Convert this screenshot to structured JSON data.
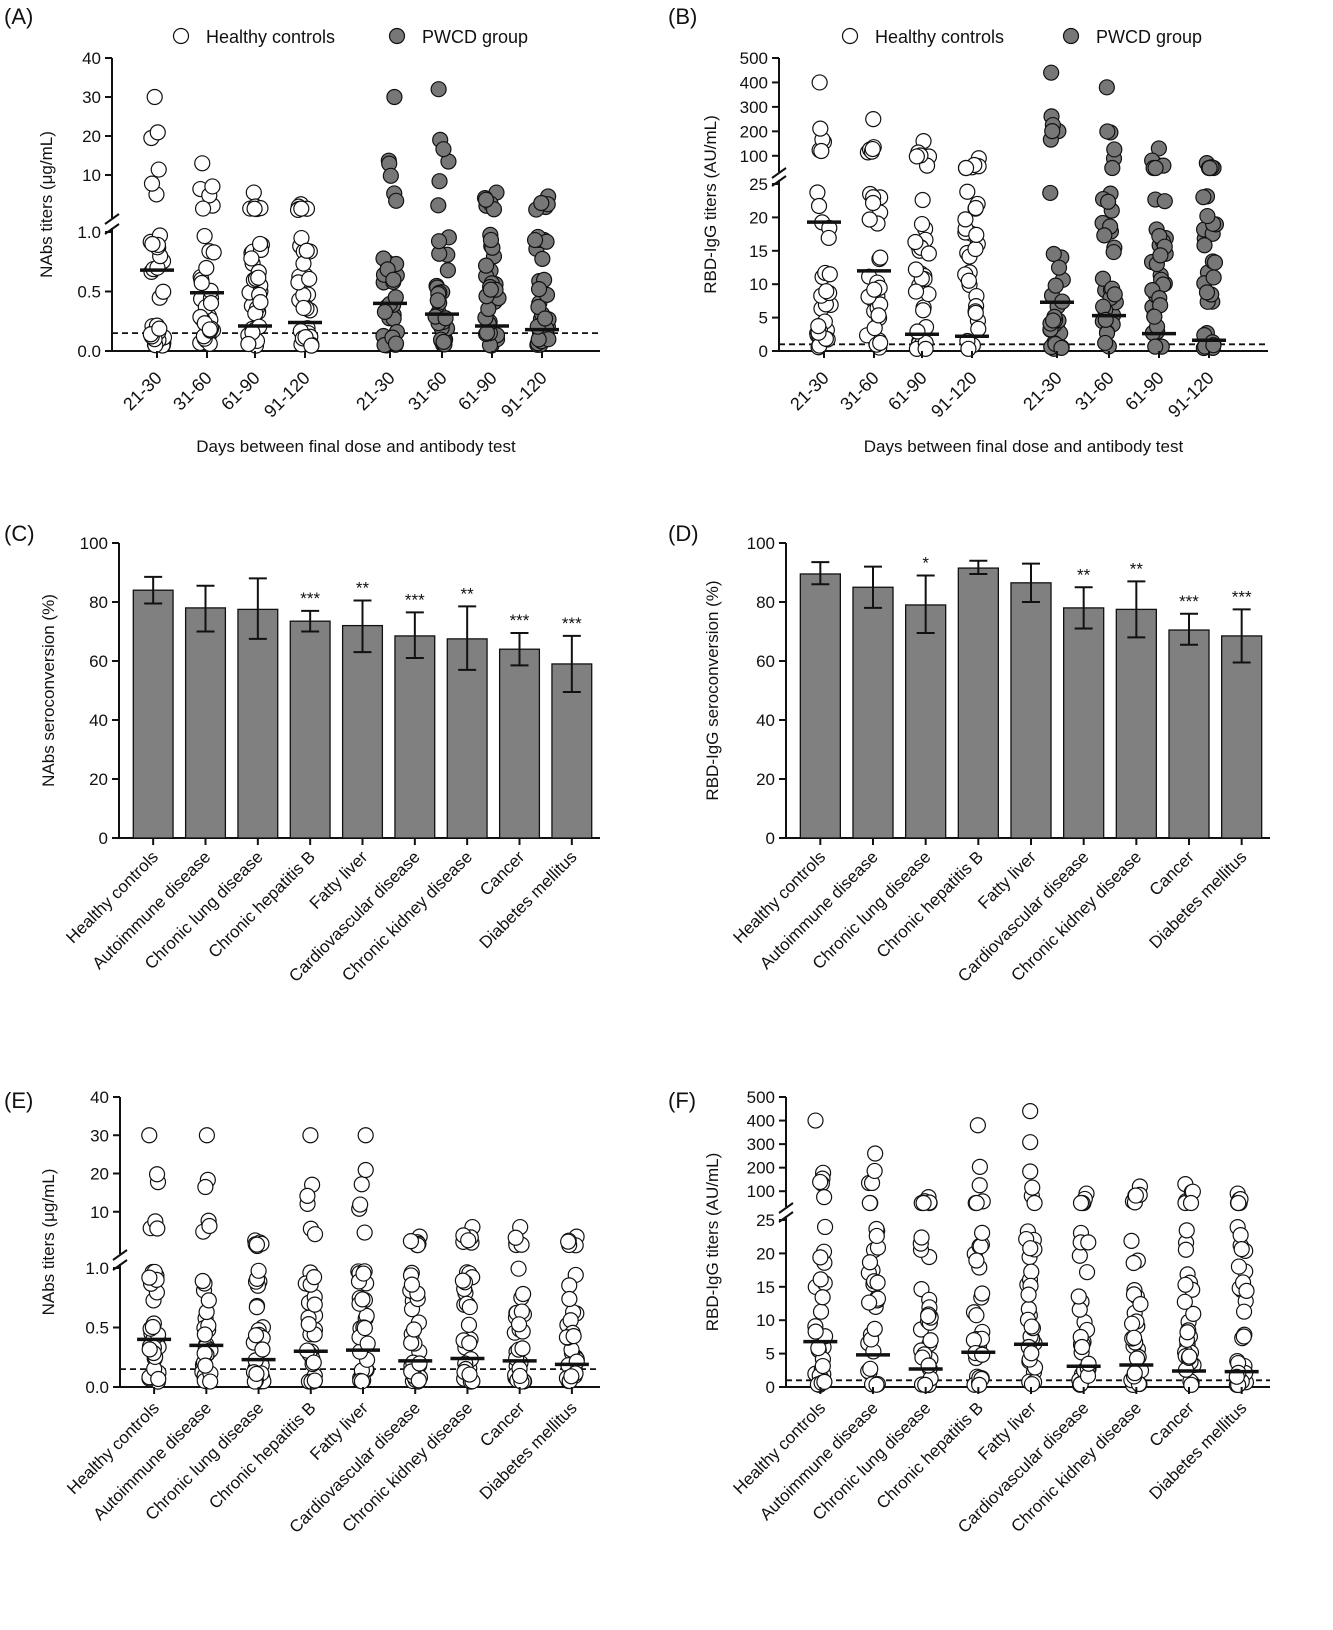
{
  "chart_data": [
    {
      "panel": "(A)",
      "type": "scatter",
      "ylabel": "NAbs titers (μg/mL)",
      "xlabel": "Days between final dose and antibody test",
      "legend": [
        "Healthy controls",
        "PWCD group"
      ],
      "legend_position": "top",
      "y_axis": {
        "broken": true,
        "lower_ylim": [
          0,
          1.0
        ],
        "lower_ticks": [
          "0.0",
          "0.5",
          "1.0"
        ],
        "upper_ylim": [
          0,
          40
        ],
        "upper_ticks": [
          "10",
          "20",
          "30",
          "40"
        ]
      },
      "threshold": 0.15,
      "categories": [
        "21-30",
        "31-60",
        "61-90",
        "91-120",
        "21-30",
        "31-60",
        "61-90",
        "91-120"
      ],
      "groups": [
        "Healthy controls",
        "Healthy controls",
        "Healthy controls",
        "Healthy controls",
        "PWCD group",
        "PWCD group",
        "PWCD group",
        "PWCD group"
      ],
      "medians": [
        0.68,
        0.49,
        0.21,
        0.24,
        0.4,
        0.31,
        0.21,
        0.18
      ],
      "max_points": [
        30,
        13,
        5.5,
        2.5,
        30,
        32,
        5.5,
        4.5
      ]
    },
    {
      "panel": "(B)",
      "type": "scatter",
      "ylabel": "RBD-IgG titers (AU/mL)",
      "xlabel": "Days between final dose and antibody test",
      "legend": [
        "Healthy controls",
        "PWCD group"
      ],
      "legend_position": "top",
      "y_axis": {
        "broken": true,
        "lower_ylim": [
          0,
          25
        ],
        "lower_ticks": [
          "0",
          "5",
          "10",
          "15",
          "20",
          "25"
        ],
        "upper_ylim": [
          50,
          500
        ],
        "upper_ticks": [
          "100",
          "200",
          "300",
          "400",
          "500"
        ]
      },
      "threshold": 1,
      "categories": [
        "21-30",
        "31-60",
        "61-90",
        "91-120",
        "21-30",
        "31-60",
        "61-90",
        "91-120"
      ],
      "groups": [
        "Healthy controls",
        "Healthy controls",
        "Healthy controls",
        "Healthy controls",
        "PWCD group",
        "PWCD group",
        "PWCD group",
        "PWCD group"
      ],
      "medians": [
        19.3,
        12.0,
        2.5,
        2.2,
        7.3,
        5.3,
        2.6,
        1.6
      ],
      "max_points": [
        400,
        250,
        160,
        90,
        440,
        380,
        130,
        70
      ]
    },
    {
      "panel": "(C)",
      "type": "bar",
      "ylabel": "NAbs seroconversion (%)",
      "ylim": [
        0,
        100
      ],
      "yticks": [
        "0",
        "20",
        "40",
        "60",
        "80",
        "100"
      ],
      "categories": [
        "Healthy controls",
        "Autoimmune disease",
        "Chronic lung disease",
        "Chronic hepatitis B",
        "Fatty liver",
        "Cardiovascular disease",
        "Chronic kidney disease",
        "Cancer",
        "Diabetes mellitus"
      ],
      "values": [
        84,
        78,
        77.5,
        73.5,
        72,
        68.5,
        67.5,
        64,
        59
      ],
      "error_low": [
        79.5,
        70,
        67.5,
        70,
        63,
        61,
        57,
        58.5,
        49.5
      ],
      "error_high": [
        88.5,
        85.5,
        88,
        77,
        80.5,
        76.5,
        78.5,
        69.5,
        68.5
      ],
      "significance": [
        "",
        "",
        "",
        "***",
        "**",
        "***",
        "**",
        "***",
        "***"
      ]
    },
    {
      "panel": "(D)",
      "type": "bar",
      "ylabel": "RBD-IgG seroconversion (%)",
      "ylim": [
        0,
        100
      ],
      "yticks": [
        "0",
        "20",
        "40",
        "60",
        "80",
        "100"
      ],
      "categories": [
        "Healthy controls",
        "Autoimmune disease",
        "Chronic lung disease",
        "Chronic hepatitis B",
        "Fatty liver",
        "Cardiovascular disease",
        "Chronic kidney disease",
        "Cancer",
        "Diabetes mellitus"
      ],
      "values": [
        89.5,
        85,
        79,
        91.5,
        86.5,
        78,
        77.5,
        70.5,
        68.5
      ],
      "error_low": [
        86,
        78,
        69.5,
        89.5,
        80,
        71,
        68,
        65.5,
        59.5
      ],
      "error_high": [
        93.5,
        92,
        89,
        94,
        93,
        85,
        87,
        76,
        77.5
      ],
      "significance": [
        "",
        "",
        "*",
        "",
        "",
        "**",
        "**",
        "***",
        "***"
      ]
    },
    {
      "panel": "(E)",
      "type": "scatter",
      "ylabel": "NAbs titers (μg/mL)",
      "y_axis": {
        "broken": true,
        "lower_ylim": [
          0,
          1.0
        ],
        "lower_ticks": [
          "0.0",
          "0.5",
          "1.0"
        ],
        "upper_ylim": [
          0,
          40
        ],
        "upper_ticks": [
          "10",
          "20",
          "30",
          "40"
        ]
      },
      "threshold": 0.15,
      "categories": [
        "Healthy controls",
        "Autoimmune disease",
        "Chronic lung disease",
        "Chronic hepatitis B",
        "Fatty liver",
        "Cardiovascular disease",
        "Chronic kidney disease",
        "Cancer",
        "Diabetes mellitus"
      ],
      "medians": [
        0.4,
        0.35,
        0.23,
        0.3,
        0.31,
        0.22,
        0.24,
        0.22,
        0.19
      ],
      "max_points": [
        30,
        30,
        2.5,
        30,
        30,
        3.5,
        6,
        6,
        3.5
      ]
    },
    {
      "panel": "(F)",
      "type": "scatter",
      "ylabel": "RBD-IgG titers (AU/mL)",
      "y_axis": {
        "broken": true,
        "lower_ylim": [
          0,
          25
        ],
        "lower_ticks": [
          "0",
          "5",
          "10",
          "15",
          "20",
          "25"
        ],
        "upper_ylim": [
          50,
          500
        ],
        "upper_ticks": [
          "100",
          "200",
          "300",
          "400",
          "500"
        ]
      },
      "threshold": 1,
      "categories": [
        "Healthy controls",
        "Autoimmune disease",
        "Chronic lung disease",
        "Chronic hepatitis B",
        "Fatty liver",
        "Cardiovascular disease",
        "Chronic kidney disease",
        "Cancer",
        "Diabetes mellitus"
      ],
      "medians": [
        6.8,
        4.8,
        2.7,
        5.2,
        6.4,
        3.1,
        3.3,
        2.4,
        2.3
      ],
      "max_points": [
        400,
        260,
        75,
        380,
        440,
        90,
        120,
        130,
        90
      ]
    }
  ]
}
